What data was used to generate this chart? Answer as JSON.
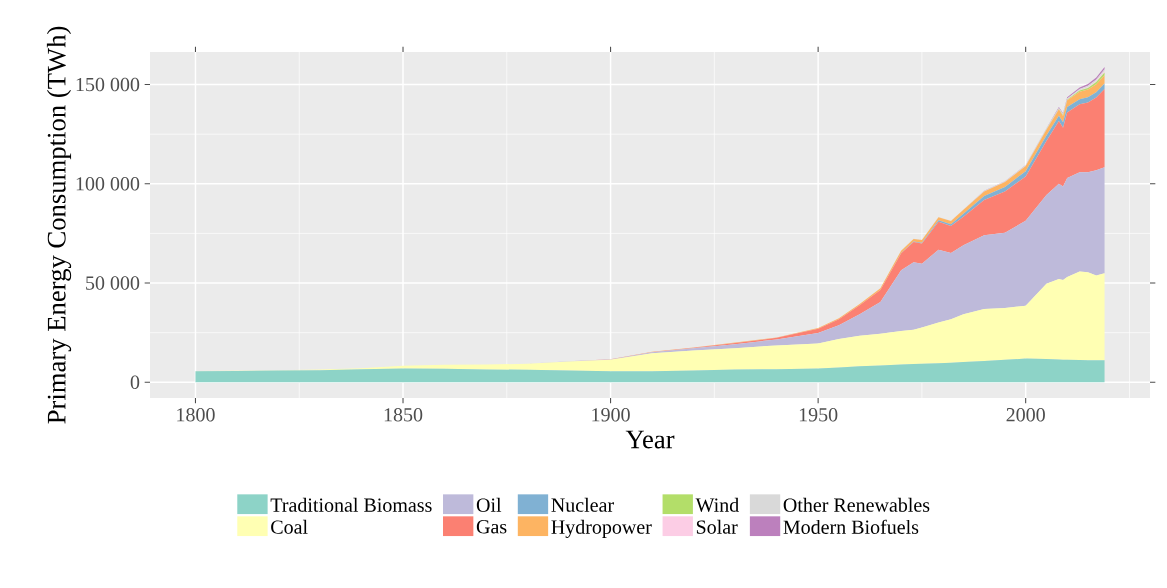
{
  "chart_data": {
    "type": "area",
    "stacked": true,
    "xlabel": "Year",
    "ylabel": "Primary Energy Consumption (TWh)",
    "x": [
      1800,
      1810,
      1820,
      1830,
      1840,
      1850,
      1860,
      1870,
      1880,
      1890,
      1900,
      1910,
      1920,
      1930,
      1940,
      1950,
      1955,
      1960,
      1965,
      1970,
      1973,
      1975,
      1979,
      1982,
      1985,
      1990,
      1995,
      2000,
      2005,
      2008,
      2009,
      2010,
      2013,
      2015,
      2017,
      2019
    ],
    "series": [
      {
        "name": "Traditional Biomass",
        "color": "#8dd3c7",
        "values": [
          5600,
          5700,
          5900,
          6100,
          6600,
          6900,
          6800,
          6500,
          6300,
          6000,
          5600,
          5600,
          6000,
          6400,
          6600,
          6900,
          7500,
          8100,
          8500,
          9000,
          9200,
          9300,
          9600,
          9800,
          10200,
          10700,
          11300,
          12000,
          11800,
          11500,
          11400,
          11400,
          11200,
          11100,
          11100,
          11100
        ]
      },
      {
        "name": "Coal",
        "color": "#ffffb3",
        "values": [
          100,
          100,
          200,
          300,
          500,
          1500,
          2000,
          2500,
          3000,
          4500,
          5700,
          9000,
          10000,
          10800,
          12000,
          12600,
          14300,
          15300,
          16000,
          16900,
          17300,
          18300,
          20500,
          22000,
          24100,
          26200,
          26100,
          26600,
          37800,
          40600,
          40200,
          41600,
          44600,
          44400,
          42700,
          43900
        ]
      },
      {
        "name": "Oil",
        "color": "#bebada",
        "values": [
          0,
          0,
          0,
          0,
          0,
          0,
          0,
          0,
          0,
          100,
          200,
          500,
          1100,
          2000,
          3000,
          5400,
          7000,
          10900,
          16000,
          30600,
          34000,
          32100,
          36700,
          33300,
          34700,
          37200,
          37900,
          42800,
          44800,
          47900,
          47000,
          49900,
          50000,
          50300,
          53000,
          53300
        ]
      },
      {
        "name": "Gas",
        "color": "#fb8072",
        "values": [
          0,
          0,
          0,
          0,
          0,
          0,
          0,
          0,
          0,
          0,
          100,
          200,
          300,
          600,
          800,
          2100,
          3000,
          4500,
          6000,
          8500,
          10200,
          10200,
          14100,
          13600,
          14400,
          17800,
          20800,
          22300,
          27100,
          31600,
          29700,
          33000,
          34300,
          35200,
          36700,
          39400
        ]
      },
      {
        "name": "Nuclear",
        "color": "#80b1d3",
        "values": [
          0,
          0,
          0,
          0,
          0,
          0,
          0,
          0,
          0,
          0,
          0,
          0,
          0,
          0,
          0,
          0,
          0,
          0,
          0,
          100,
          200,
          400,
          700,
          900,
          1500,
          2000,
          2300,
          2600,
          2800,
          2700,
          2700,
          2800,
          2500,
          2600,
          2600,
          2800
        ]
      },
      {
        "name": "Hydropower",
        "color": "#fdb462",
        "values": [
          0,
          0,
          0,
          0,
          0,
          0,
          0,
          0,
          0,
          0,
          0,
          100,
          100,
          200,
          200,
          300,
          500,
          700,
          900,
          1200,
          1300,
          1400,
          1600,
          1700,
          2000,
          2200,
          2500,
          2700,
          2900,
          3200,
          3200,
          3400,
          3800,
          3900,
          4100,
          4200
        ]
      },
      {
        "name": "Wind",
        "color": "#b3de69",
        "values": [
          0,
          0,
          0,
          0,
          0,
          0,
          0,
          0,
          0,
          0,
          0,
          0,
          0,
          0,
          0,
          0,
          0,
          0,
          0,
          0,
          0,
          0,
          0,
          0,
          0,
          0,
          0,
          0,
          100,
          200,
          300,
          300,
          600,
          800,
          1100,
          1400
        ]
      },
      {
        "name": "Solar",
        "color": "#fccde5",
        "values": [
          0,
          0,
          0,
          0,
          0,
          0,
          0,
          0,
          0,
          0,
          0,
          0,
          0,
          0,
          0,
          0,
          0,
          0,
          0,
          0,
          0,
          0,
          0,
          0,
          0,
          0,
          0,
          0,
          0,
          0,
          0,
          0,
          100,
          300,
          500,
          700
        ]
      },
      {
        "name": "Other Renewables",
        "color": "#d9d9d9",
        "values": [
          0,
          0,
          0,
          0,
          0,
          0,
          0,
          0,
          0,
          0,
          0,
          0,
          0,
          0,
          0,
          0,
          0,
          0,
          0,
          100,
          100,
          100,
          100,
          100,
          200,
          300,
          300,
          400,
          500,
          500,
          600,
          600,
          700,
          800,
          800,
          900
        ]
      },
      {
        "name": "Modern Biofuels",
        "color": "#bc80bd",
        "values": [
          0,
          0,
          0,
          0,
          0,
          0,
          0,
          0,
          0,
          0,
          0,
          0,
          0,
          0,
          0,
          0,
          0,
          0,
          0,
          0,
          0,
          0,
          0,
          0,
          0,
          100,
          100,
          100,
          200,
          500,
          500,
          600,
          700,
          900,
          900,
          1100
        ]
      }
    ],
    "xlim": [
      1789.05,
      2029.95
    ],
    "ylim": [
      -7900,
      166400
    ],
    "xticks": [
      1800,
      1850,
      1900,
      1950,
      2000
    ],
    "yticks": [
      0,
      {
        "value": 50000,
        "label": "50 000"
      },
      {
        "value": 100000,
        "label": "100 000"
      },
      {
        "value": 150000,
        "label": "150 000"
      }
    ],
    "grid": true,
    "legend": "bottom"
  }
}
